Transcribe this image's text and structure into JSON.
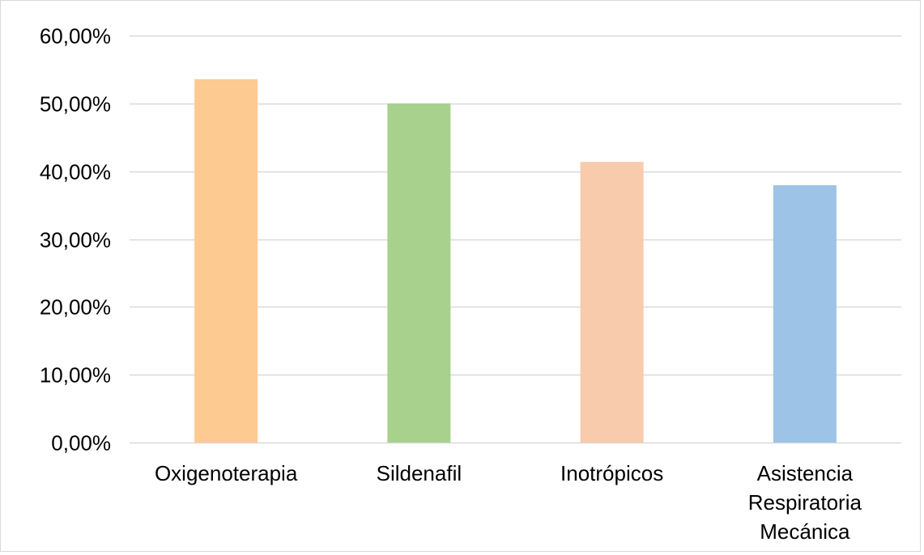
{
  "chart_data": {
    "type": "bar",
    "categories": [
      "Oxigenoterapia",
      "Sildenafil",
      "Inotrópicos",
      "Asistencia Respiratoria Mecánica"
    ],
    "category_lines": [
      [
        "Oxigenoterapia"
      ],
      [
        "Sildenafil"
      ],
      [
        "Inotrópicos"
      ],
      [
        "Asistencia",
        "Respiratoria",
        "Mecánica"
      ]
    ],
    "values": [
      53.57,
      50.0,
      41.38,
      37.93
    ],
    "bar_colors": [
      "#fdca92",
      "#a9d18e",
      "#f8cbad",
      "#9dc3e6"
    ],
    "ylim": [
      0,
      60
    ],
    "yticks": [
      0,
      10,
      20,
      30,
      40,
      50,
      60
    ],
    "ytick_labels": [
      "0,00%",
      "10,00%",
      "20,00%",
      "30,00%",
      "40,00%",
      "50,00%",
      "60,00%"
    ],
    "grid": true,
    "gridline_color": "#d9d9d9",
    "title": "",
    "xlabel": "",
    "ylabel": ""
  }
}
